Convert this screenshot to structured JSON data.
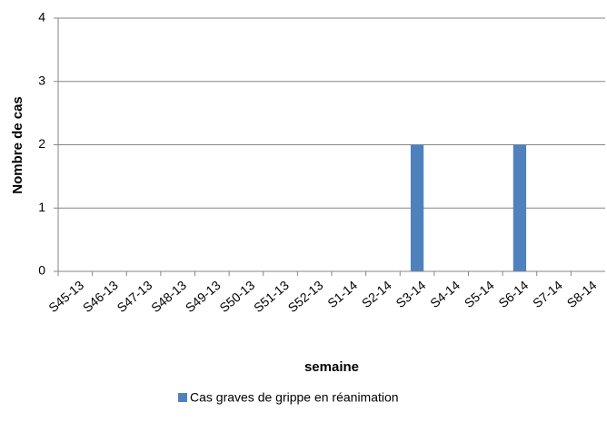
{
  "chart_data": {
    "type": "bar",
    "y_label": "Nombre de cas",
    "x_label": "semaine",
    "categories": [
      "S45-13",
      "S46-13",
      "S47-13",
      "S48-13",
      "S49-13",
      "S50-13",
      "S51-13",
      "S52-13",
      "S1-14",
      "S2-14",
      "S3-14",
      "S4-14",
      "S5-14",
      "S6-14",
      "S7-14",
      "S8-14"
    ],
    "series": [
      {
        "name": "Cas graves de grippe  en réanimation",
        "color": "#4f81bd",
        "values": [
          0,
          0,
          0,
          0,
          0,
          0,
          0,
          0,
          0,
          0,
          2,
          0,
          0,
          2,
          0,
          0
        ]
      }
    ],
    "ylim": [
      0,
      4
    ],
    "yticks": [
      0,
      1,
      2,
      3,
      4
    ],
    "grid": true
  }
}
